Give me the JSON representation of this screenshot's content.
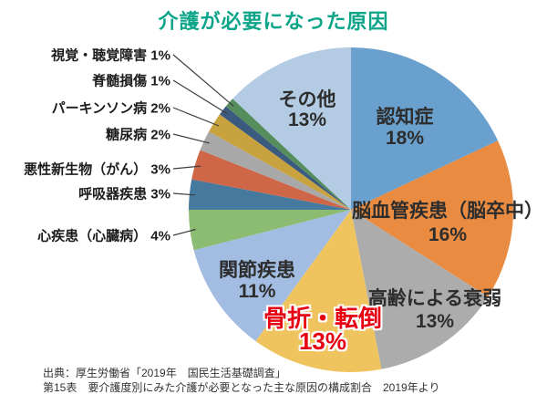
{
  "title": "介護が必要になった原因",
  "title_color": "#0CA58A",
  "highlight_color": "#E60012",
  "source": {
    "line1": "出典：厚生労働省「2019年　国民生活基礎調査」",
    "line2": "第15表　要介護度別にみた介護が必要となった主な原因の構成割合　2019年より"
  },
  "chart_data": {
    "type": "pie",
    "title": "介護が必要になった原因",
    "start_angle_deg": 0,
    "direction": "clockwise",
    "legend_position": "none",
    "segments": [
      {
        "label": "認知症",
        "value": 18,
        "color": "#69A0CD",
        "label_placement": "inside"
      },
      {
        "label": "脳血管疾患（脳卒中）",
        "value": 16,
        "color": "#E98C42",
        "label_placement": "inside"
      },
      {
        "label": "高齢による衰弱",
        "value": 13,
        "color": "#ACACAC",
        "label_placement": "inside"
      },
      {
        "label": "骨折・転倒",
        "value": 13,
        "color": "#EFC45F",
        "label_placement": "inside",
        "highlight": true
      },
      {
        "label": "関節疾患",
        "value": 11,
        "color": "#A3BCE2",
        "label_placement": "inside"
      },
      {
        "label": "心疾患（心臓病）",
        "value": 4,
        "color": "#8CBB72",
        "label_placement": "outside"
      },
      {
        "label": "呼吸器疾患",
        "value": 3,
        "color": "#45799E",
        "label_placement": "outside"
      },
      {
        "label": "悪性新生物（がん）",
        "value": 3,
        "color": "#CE6647",
        "label_placement": "outside"
      },
      {
        "label": "糖尿病",
        "value": 2,
        "color": "#A8A8A8",
        "label_placement": "outside"
      },
      {
        "label": "パーキンソン病",
        "value": 2,
        "color": "#C8A23E",
        "label_placement": "outside"
      },
      {
        "label": "脊髄損傷",
        "value": 1,
        "color": "#3A5A7E",
        "label_placement": "outside"
      },
      {
        "label": "視覚・聴覚障害",
        "value": 1,
        "color": "#568D5C",
        "label_placement": "outside"
      },
      {
        "label": "その他",
        "value": 13,
        "color": "#B3CCE4",
        "label_placement": "inside"
      }
    ]
  }
}
